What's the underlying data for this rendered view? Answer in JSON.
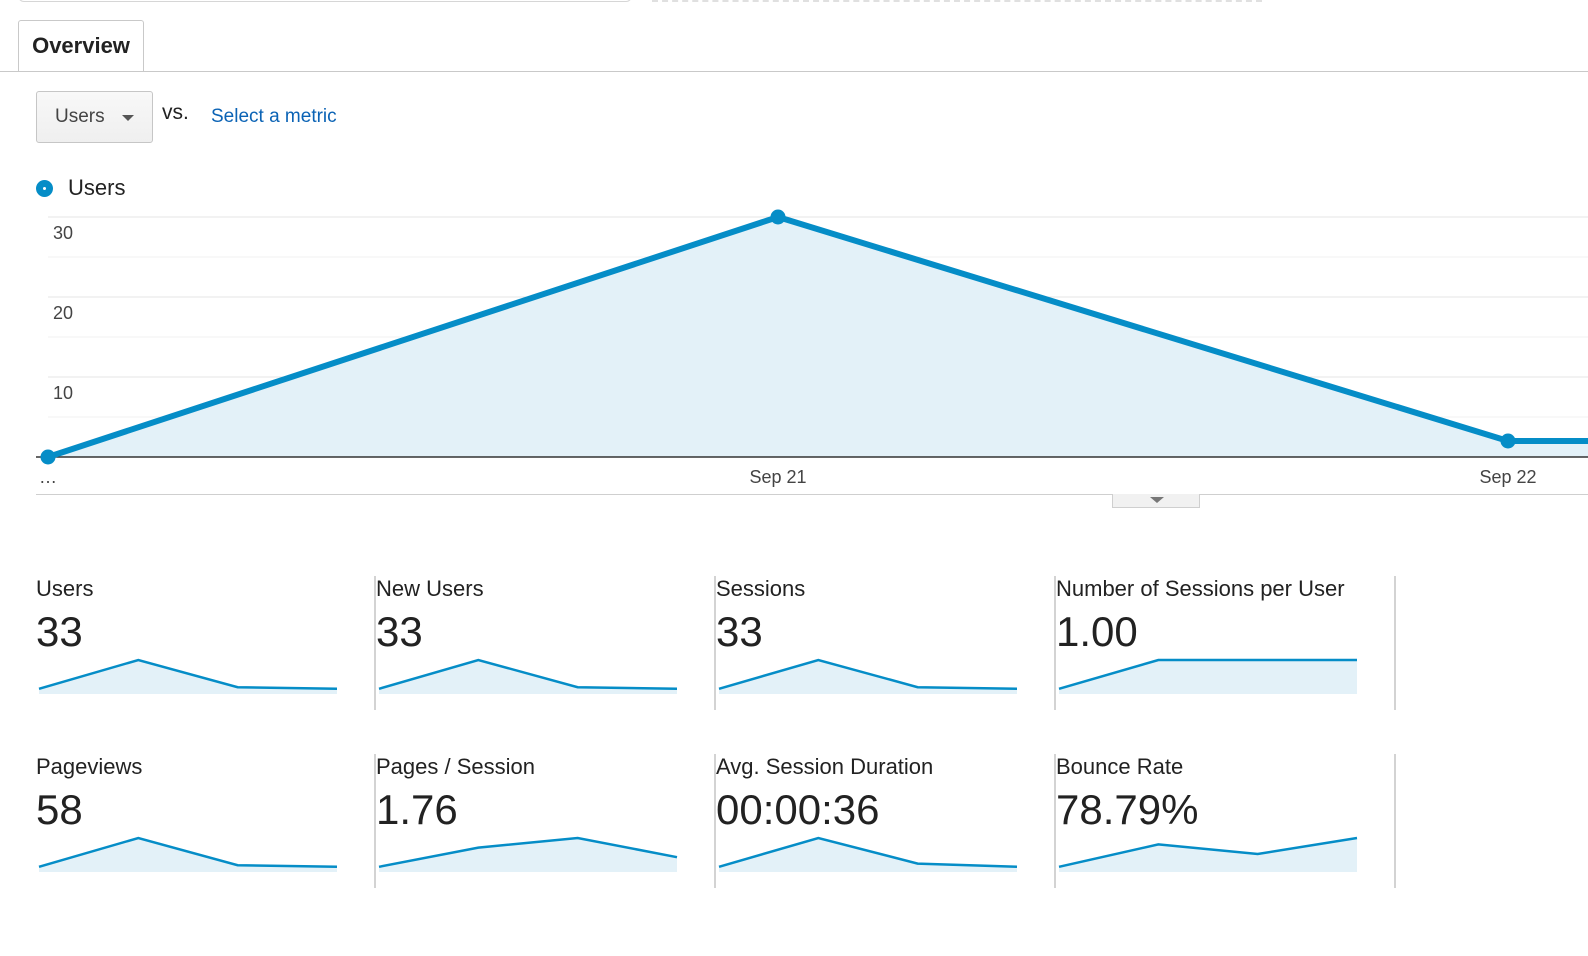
{
  "tabs": [
    {
      "label": "Overview"
    }
  ],
  "metric_picker": {
    "selected": "Users",
    "vs_label": "vs.",
    "select_metric_link": "Select a metric"
  },
  "colors": {
    "accent": "#058dc7",
    "fill": "#e3f1f8",
    "link": "#0b63b5"
  },
  "chart_data": {
    "type": "area",
    "legend": [
      "Users"
    ],
    "x": [
      "…",
      "Sep 21",
      "Sep 22",
      ""
    ],
    "xtick_labels": [
      "…",
      "Sep 21",
      "Sep 22"
    ],
    "series": [
      {
        "name": "Users",
        "values": [
          0,
          30,
          2,
          2
        ]
      }
    ],
    "ylim": [
      0,
      30
    ],
    "yticks": [
      "10",
      "20",
      "30"
    ],
    "grid": true,
    "legend_position": "top-left"
  },
  "tiles": [
    {
      "label": "Users",
      "value": "33",
      "spark": [
        1,
        10,
        1.5,
        1
      ]
    },
    {
      "label": "New Users",
      "value": "33",
      "spark": [
        1,
        10,
        1.5,
        1
      ]
    },
    {
      "label": "Sessions",
      "value": "33",
      "spark": [
        1,
        10,
        1.5,
        1
      ]
    },
    {
      "label": "Number of Sessions per User",
      "value": "1.00",
      "spark": [
        1,
        10,
        10,
        10
      ]
    },
    {
      "label": "Pageviews",
      "value": "58",
      "spark": [
        1,
        10,
        1.5,
        1
      ]
    },
    {
      "label": "Pages / Session",
      "value": "1.76",
      "spark": [
        1,
        7,
        10,
        4
      ]
    },
    {
      "label": "Avg. Session Duration",
      "value": "00:00:36",
      "spark": [
        1,
        10,
        2,
        1
      ]
    },
    {
      "label": "Bounce Rate",
      "value": "78.79%",
      "spark": [
        1,
        8,
        5,
        10
      ]
    }
  ]
}
